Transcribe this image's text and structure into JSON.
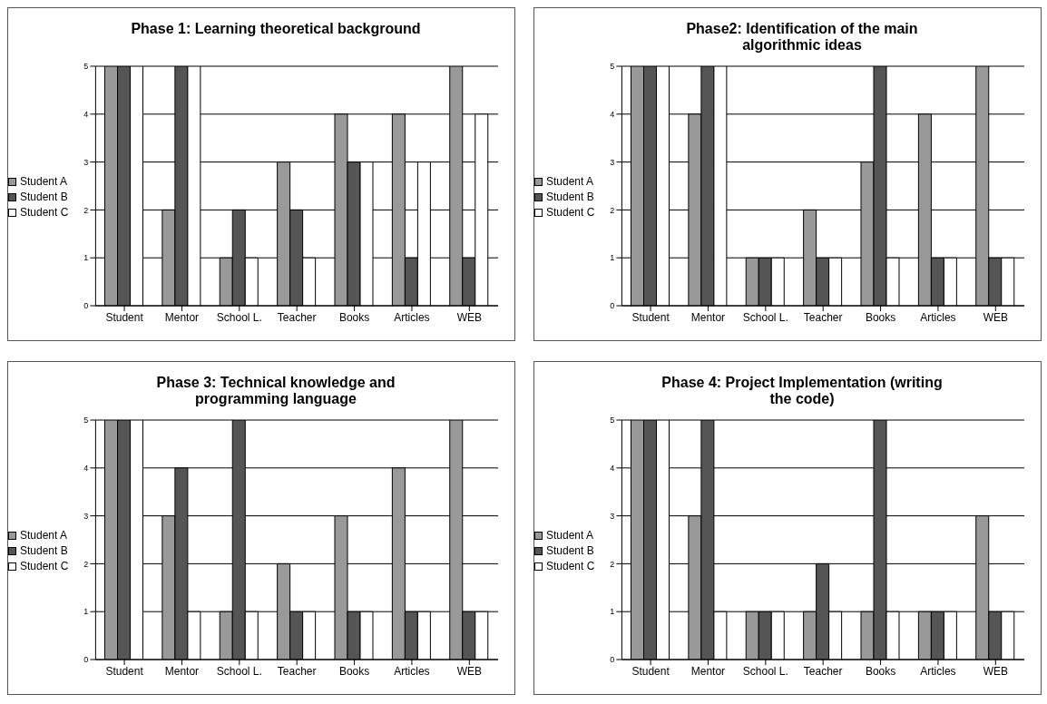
{
  "chart_data": [
    {
      "type": "bar",
      "title": "Phase 1: Learning theoretical background",
      "categories": [
        "Student",
        "Mentor",
        "School L.",
        "Teacher",
        "Books",
        "Articles",
        "WEB"
      ],
      "series": [
        {
          "name": "Student A",
          "color": "#999999",
          "values": [
            5,
            2,
            1,
            3,
            4,
            4,
            5
          ]
        },
        {
          "name": "Student B",
          "color": "#555555",
          "values": [
            5,
            5,
            2,
            2,
            3,
            1,
            1
          ]
        },
        {
          "name": "Student C",
          "color": "#ffffff",
          "values": [
            5,
            5,
            1,
            1,
            3,
            3,
            4
          ]
        }
      ],
      "ylim": [
        0,
        5
      ],
      "yticks": [
        0,
        1,
        2,
        3,
        4,
        5
      ],
      "grid": "y",
      "legend": "left"
    },
    {
      "type": "bar",
      "title": "Phase2: Identification of the main algorithmic ideas",
      "categories": [
        "Student",
        "Mentor",
        "School L.",
        "Teacher",
        "Books",
        "Articles",
        "WEB"
      ],
      "series": [
        {
          "name": "Student A",
          "color": "#999999",
          "values": [
            5,
            4,
            1,
            2,
            3,
            4,
            5
          ]
        },
        {
          "name": "Student B",
          "color": "#555555",
          "values": [
            5,
            5,
            1,
            1,
            5,
            1,
            1
          ]
        },
        {
          "name": "Student C",
          "color": "#ffffff",
          "values": [
            5,
            5,
            1,
            1,
            1,
            1,
            1
          ]
        }
      ],
      "ylim": [
        0,
        5
      ],
      "yticks": [
        0,
        1,
        2,
        3,
        4,
        5
      ],
      "grid": "y",
      "legend": "left"
    },
    {
      "type": "bar",
      "title": "Phase 3: Technical knowledge and programming language",
      "categories": [
        "Student",
        "Mentor",
        "School L.",
        "Teacher",
        "Books",
        "Articles",
        "WEB"
      ],
      "series": [
        {
          "name": "Student A",
          "color": "#999999",
          "values": [
            5,
            3,
            1,
            2,
            3,
            4,
            5
          ]
        },
        {
          "name": "Student B",
          "color": "#555555",
          "values": [
            5,
            4,
            5,
            1,
            1,
            1,
            1
          ]
        },
        {
          "name": "Student C",
          "color": "#ffffff",
          "values": [
            5,
            1,
            1,
            1,
            1,
            1,
            1
          ]
        }
      ],
      "ylim": [
        0,
        5
      ],
      "yticks": [
        0,
        1,
        2,
        3,
        4,
        5
      ],
      "grid": "y",
      "legend": "left"
    },
    {
      "type": "bar",
      "title": "Phase 4: Project Implementation (writing the code)",
      "categories": [
        "Student",
        "Mentor",
        "School L.",
        "Teacher",
        "Books",
        "Articles",
        "WEB"
      ],
      "series": [
        {
          "name": "Student A",
          "color": "#999999",
          "values": [
            5,
            3,
            1,
            1,
            1,
            1,
            3
          ]
        },
        {
          "name": "Student B",
          "color": "#555555",
          "values": [
            5,
            5,
            1,
            2,
            5,
            1,
            1
          ]
        },
        {
          "name": "Student C",
          "color": "#ffffff",
          "values": [
            5,
            1,
            1,
            1,
            1,
            1,
            1
          ]
        }
      ],
      "ylim": [
        0,
        5
      ],
      "yticks": [
        0,
        1,
        2,
        3,
        4,
        5
      ],
      "grid": "y",
      "legend": "left"
    }
  ]
}
